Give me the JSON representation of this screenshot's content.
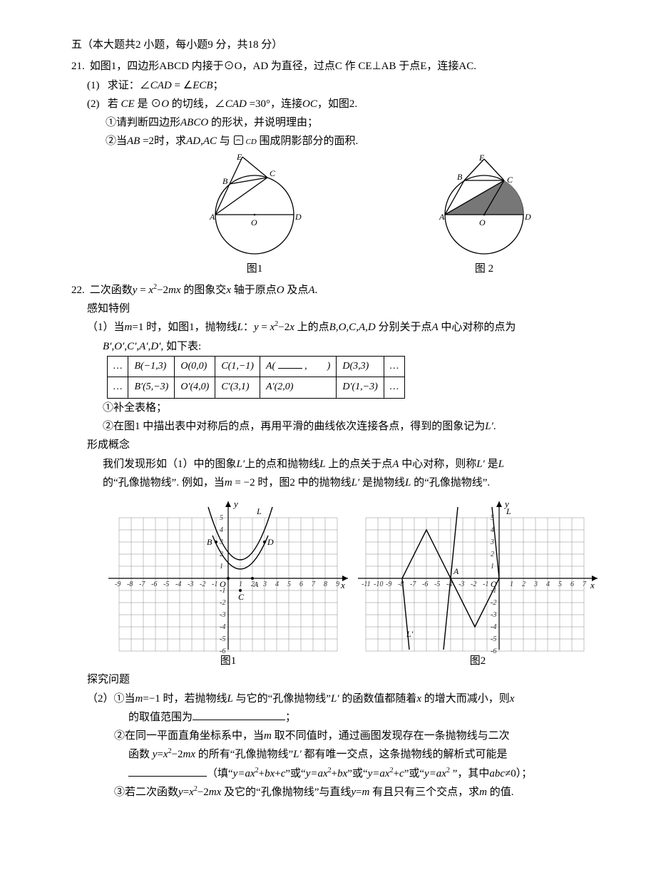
{
  "section_heading": "五（本大题共2 小题，每小题9 分，共18 分）",
  "q21": {
    "num": "21.",
    "stem": "如图1，四边形ABCD 内接于⊙O，AD 为直径，过点C 作 CE⊥AB 于点E，连接AC.",
    "p1_num": "(1)",
    "p1": "求证：∠CAD = ∠ECB；",
    "p2_num": "(2)",
    "p2": "若 CE 是 ⊙O 的切线，∠CAD =30°，连接OC，如图2.",
    "p2a": "①请判断四边形ABCO 的形状，并说明理由；",
    "p2b_a": "②当AB =2时，求AD,AC 与 ",
    "p2b_arc": "⌢",
    "p2b_cd": "CD",
    "p2b_b": " 围成阴影部分的面积.",
    "cap1": "图1",
    "cap2": "图 2"
  },
  "q22": {
    "num": "22.",
    "stem_a": "二次函数",
    "stem_fn": "y = x²−2mx",
    "stem_b": "的图象交x 轴于原点O 及点A.",
    "sense": "感知特例",
    "p1_a": "（1）当m=1 时，如图1，抛物线L：",
    "p1_fn": "y = x²−2x",
    "p1_b": " 上的点B,O,C,A,D 分别关于点A 中心对称的点为",
    "p1_c": "B′,O′,C′,A′,D′, 如下表:",
    "tab": {
      "r1": [
        "…",
        "B(−1,3)",
        "O(0,0)",
        "C(1,−1)",
        "A(____,　　)",
        "D(3,3)",
        "…"
      ],
      "r2": [
        "…",
        "B′(5,−3)",
        "O′(4,0)",
        "C′(3,1)",
        "A′(2,0)",
        "D′(1,−3)",
        "…"
      ]
    },
    "p1_sub1": "①补全表格；",
    "p1_sub2": "②在图1 中描出表中对称后的点，再用平滑的曲线依次连接各点，得到的图象记为L′.",
    "concept": "形成概念",
    "concept_txtA": "我们发现形如（1）中的图象L′上的点和抛物线L 上的点关于点A 中心对称，则称L′ 是L",
    "concept_txtB": "的“孔像抛物线”. 例如，当m = −2 时，图2 中的抛物线L′ 是抛物线L 的“孔像抛物线”.",
    "graph_cap1": "图1",
    "graph_cap2": "图2",
    "explore": "探究问题",
    "p2_1a": "（2）①当m=−1 时，若抛物线L 与它的“孔像抛物线”L′ 的函数值都随着x 的增大而减小，则x",
    "p2_1b": "的取值范围为",
    "p2_1c": "；",
    "p2_2a": "②在同一平面直角坐标系中，当m 取不同值时，通过画图发现存在一条抛物线与二次",
    "p2_2b": "函数 y=x²−2mx 的所有“孔像抛物线”L′ 都有唯一交点，这条抛物线的解析式可能是",
    "p2_2c": "（填“y=ax²+bx+c”或“y=ax²+bx”或“y=ax²+c”或“y=ax² ”，其中abc≠0）；",
    "p2_3": "③若二次函数y=x²−2mx 及它的“孔像抛物线”与直线y=m 有且只有三个交点，求m 的值.",
    "colors": {
      "grid": "#888888",
      "axis": "#000000",
      "curve": "#000000"
    }
  }
}
